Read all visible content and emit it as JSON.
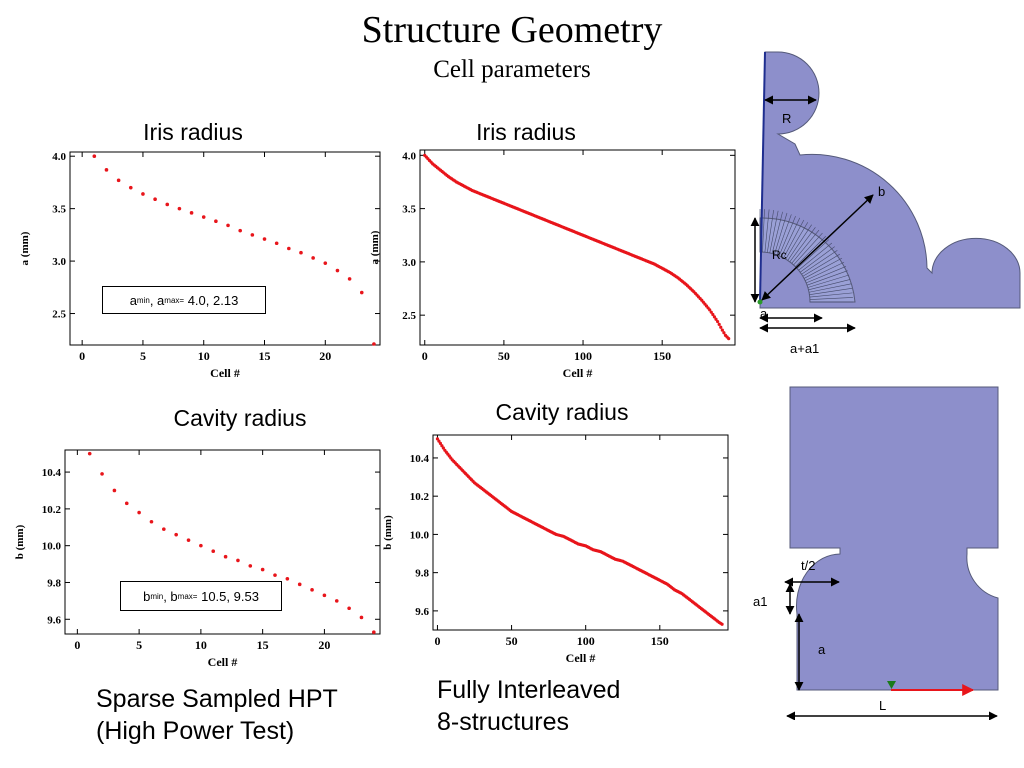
{
  "slide": {
    "title": "Structure Geometry",
    "subtitle": "Cell parameters",
    "caption_left": [
      "Sparse Sampled HPT",
      "(High Power Test)"
    ],
    "caption_right": [
      "Fully Interleaved",
      "8-structures"
    ]
  },
  "colors": {
    "points": "#e8151b",
    "shape_fill": "#8d8fcb",
    "shape_stroke": "#555a7a",
    "dims": "#000000"
  },
  "chart_data": [
    {
      "id": "iris_sparse",
      "type": "scatter",
      "title": "Iris radius",
      "xlabel": "Cell #",
      "ylabel": "a (mm)",
      "xlim": [
        -1,
        24.5
      ],
      "ylim": [
        2.2,
        4.04
      ],
      "xticks": [
        0,
        5,
        10,
        15,
        20
      ],
      "yticks": [
        2.5,
        3.0,
        3.5,
        4.0
      ],
      "x": [
        1,
        2,
        3,
        4,
        5,
        6,
        7,
        8,
        9,
        10,
        11,
        12,
        13,
        14,
        15,
        16,
        17,
        18,
        19,
        20,
        21,
        22,
        23,
        24
      ],
      "y": [
        4.0,
        3.87,
        3.77,
        3.7,
        3.64,
        3.59,
        3.54,
        3.5,
        3.46,
        3.42,
        3.38,
        3.34,
        3.29,
        3.25,
        3.21,
        3.17,
        3.12,
        3.08,
        3.03,
        2.98,
        2.91,
        2.83,
        2.7,
        2.13
      ],
      "annotation": {
        "prefix": "a",
        "sub1": "min",
        "mid": ", a",
        "sub2": "max=",
        "values": "4.0, 2.13"
      }
    },
    {
      "id": "iris_full",
      "type": "scatter",
      "title": "Iris radius",
      "xlabel": "Cell #",
      "ylabel": "a (mm)",
      "xlim": [
        -3,
        196
      ],
      "ylim": [
        2.22,
        4.05
      ],
      "xticks": [
        0,
        50,
        100,
        150
      ],
      "yticks": [
        2.5,
        3.0,
        3.5,
        4.0
      ],
      "x": [
        0,
        5,
        10,
        15,
        20,
        25,
        30,
        35,
        40,
        45,
        50,
        55,
        60,
        65,
        70,
        75,
        80,
        85,
        90,
        95,
        100,
        105,
        110,
        115,
        120,
        125,
        130,
        135,
        140,
        145,
        150,
        155,
        160,
        165,
        170,
        175,
        180,
        185,
        188,
        190,
        192
      ],
      "y": [
        4.0,
        3.92,
        3.86,
        3.8,
        3.75,
        3.71,
        3.67,
        3.64,
        3.61,
        3.58,
        3.55,
        3.52,
        3.49,
        3.46,
        3.43,
        3.4,
        3.37,
        3.34,
        3.31,
        3.28,
        3.25,
        3.22,
        3.19,
        3.16,
        3.13,
        3.1,
        3.07,
        3.04,
        3.01,
        2.98,
        2.94,
        2.9,
        2.85,
        2.79,
        2.72,
        2.64,
        2.55,
        2.44,
        2.36,
        2.31,
        2.28
      ]
    },
    {
      "id": "cavity_sparse",
      "type": "scatter",
      "title": "Cavity radius",
      "xlabel": "Cell #",
      "ylabel": "b (mm)",
      "xlim": [
        -1,
        24.5
      ],
      "ylim": [
        9.52,
        10.52
      ],
      "xticks": [
        0,
        5,
        10,
        15,
        20
      ],
      "yticks": [
        9.6,
        9.8,
        10.0,
        10.2,
        10.4
      ],
      "x": [
        1,
        2,
        3,
        4,
        5,
        6,
        7,
        8,
        9,
        10,
        11,
        12,
        13,
        14,
        15,
        16,
        17,
        18,
        19,
        20,
        21,
        22,
        23,
        24
      ],
      "y": [
        10.5,
        10.39,
        10.3,
        10.23,
        10.18,
        10.13,
        10.09,
        10.06,
        10.03,
        10.0,
        9.97,
        9.94,
        9.92,
        9.89,
        9.87,
        9.84,
        9.82,
        9.79,
        9.76,
        9.73,
        9.7,
        9.66,
        9.61,
        9.53
      ],
      "annotation": {
        "prefix": "b",
        "sub1": "min",
        "mid": ", b",
        "sub2": "max=",
        "values": "10.5, 9.53"
      }
    },
    {
      "id": "cavity_full",
      "type": "scatter",
      "title": "Cavity radius",
      "xlabel": "Cell #",
      "ylabel": "b (mm)",
      "xlim": [
        -3,
        196
      ],
      "ylim": [
        9.5,
        10.52
      ],
      "xticks": [
        0,
        50,
        100,
        150
      ],
      "yticks": [
        9.6,
        9.8,
        10.0,
        10.2,
        10.4
      ],
      "x": [
        0,
        5,
        10,
        15,
        20,
        25,
        30,
        35,
        40,
        45,
        50,
        55,
        60,
        65,
        70,
        75,
        80,
        85,
        90,
        95,
        100,
        105,
        110,
        115,
        120,
        125,
        130,
        135,
        140,
        145,
        150,
        155,
        160,
        165,
        170,
        175,
        180,
        185,
        190,
        192
      ],
      "y": [
        10.5,
        10.44,
        10.39,
        10.35,
        10.31,
        10.27,
        10.24,
        10.21,
        10.18,
        10.15,
        10.12,
        10.1,
        10.08,
        10.06,
        10.04,
        10.02,
        10.0,
        9.99,
        9.97,
        9.95,
        9.94,
        9.92,
        9.91,
        9.89,
        9.87,
        9.86,
        9.84,
        9.82,
        9.8,
        9.78,
        9.76,
        9.74,
        9.71,
        9.69,
        9.66,
        9.63,
        9.6,
        9.57,
        9.54,
        9.53
      ]
    }
  ],
  "diagram_top": {
    "labels": {
      "R": "R",
      "b": "b",
      "Rc": "Rc",
      "a": "a",
      "a_a1": "a+a1"
    }
  },
  "diagram_bottom": {
    "labels": {
      "t2": "t/2",
      "a1": "a1",
      "a": "a",
      "L": "L"
    }
  }
}
